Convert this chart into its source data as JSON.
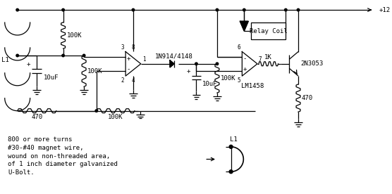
{
  "bg_color": "#ffffff",
  "line_color": "#000000",
  "font_family": "monospace",
  "font_size": 6.5,
  "fig_width": 5.56,
  "fig_height": 2.76,
  "dpi": 100,
  "notes": [
    "800 or more turns",
    "#30-#40 magnet wire,",
    "wound on non-threaded area,",
    "of 1 inch diameter galvanized",
    "U-Bolt."
  ]
}
